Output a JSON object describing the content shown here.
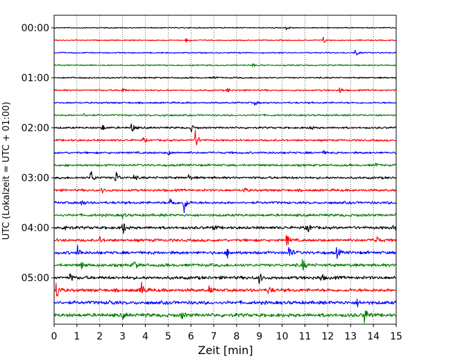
{
  "chart_data": {
    "type": "line",
    "title": "",
    "xlabel": "Zeit  [min]",
    "ylabel": "UTC (Lokalzeit = UTC + 01:00)",
    "xlim": [
      0,
      15
    ],
    "xticks": [
      0,
      1,
      2,
      3,
      4,
      5,
      6,
      7,
      8,
      9,
      10,
      11,
      12,
      13,
      14,
      15
    ],
    "xtick_labels": [
      "0",
      "1",
      "2",
      "3",
      "4",
      "5",
      "6",
      "7",
      "8",
      "9",
      "10",
      "11",
      "12",
      "13",
      "14",
      "15"
    ],
    "ytick_labels": [
      "00:00",
      "01:00",
      "02:00",
      "03:00",
      "04:00",
      "05:00"
    ],
    "minutes_per_trace": 15,
    "vertical_grid": true,
    "grid_style": "dotted",
    "trace_colors": [
      "#000000",
      "#ff0000",
      "#0000ff",
      "#008000"
    ],
    "traces": [
      {
        "start": "00:00",
        "color": "#000000",
        "events": [
          [
            10.2,
            0.25
          ]
        ]
      },
      {
        "start": "00:15",
        "color": "#ff0000",
        "events": [
          [
            5.8,
            0.3
          ],
          [
            11.8,
            0.3
          ]
        ]
      },
      {
        "start": "00:30",
        "color": "#0000ff",
        "events": [
          [
            13.2,
            0.35
          ]
        ]
      },
      {
        "start": "00:45",
        "color": "#008000",
        "events": [
          [
            8.7,
            0.15
          ]
        ]
      },
      {
        "start": "01:00",
        "color": "#000000",
        "events": [
          [
            7.0,
            0.12
          ]
        ]
      },
      {
        "start": "01:15",
        "color": "#ff0000",
        "events": [
          [
            3.0,
            0.2
          ],
          [
            7.6,
            0.25
          ],
          [
            12.5,
            0.35
          ]
        ]
      },
      {
        "start": "01:30",
        "color": "#0000ff",
        "events": [
          [
            8.8,
            0.2
          ]
        ]
      },
      {
        "start": "01:45",
        "color": "#008000",
        "events": [
          [
            1.3,
            0.15
          ],
          [
            4.8,
            0.15
          ]
        ]
      },
      {
        "start": "02:00",
        "color": "#000000",
        "events": [
          [
            2.1,
            0.3
          ],
          [
            3.4,
            0.5
          ],
          [
            6.0,
            0.35
          ],
          [
            11.2,
            0.3
          ]
        ]
      },
      {
        "start": "02:15",
        "color": "#ff0000",
        "events": [
          [
            3.9,
            0.2
          ],
          [
            6.2,
            0.9
          ]
        ]
      },
      {
        "start": "02:30",
        "color": "#0000ff",
        "events": [
          [
            5.0,
            0.2
          ],
          [
            11.8,
            0.15
          ]
        ]
      },
      {
        "start": "02:45",
        "color": "#008000",
        "events": [
          [
            14.1,
            0.15
          ]
        ]
      },
      {
        "start": "03:00",
        "color": "#000000",
        "events": [
          [
            1.6,
            0.75
          ],
          [
            2.7,
            0.65
          ],
          [
            3.5,
            0.25
          ],
          [
            5.9,
            0.25
          ]
        ]
      },
      {
        "start": "03:15",
        "color": "#ff0000",
        "events": [
          [
            2.1,
            0.25
          ],
          [
            8.3,
            0.3
          ]
        ]
      },
      {
        "start": "03:30",
        "color": "#0000ff",
        "events": [
          [
            1.2,
            0.25
          ],
          [
            5.1,
            0.55
          ],
          [
            5.7,
            0.9
          ]
        ]
      },
      {
        "start": "03:45",
        "color": "#008000",
        "events": [
          [
            3.0,
            0.2
          ]
        ]
      },
      {
        "start": "04:00",
        "color": "#000000",
        "events": [
          [
            0.5,
            0.35
          ],
          [
            3.0,
            0.7
          ],
          [
            7.0,
            0.25
          ],
          [
            11.1,
            0.55
          ],
          [
            14.9,
            0.3
          ]
        ]
      },
      {
        "start": "04:15",
        "color": "#ff0000",
        "events": [
          [
            2.0,
            0.25
          ],
          [
            10.2,
            0.55
          ],
          [
            14.1,
            0.55
          ]
        ]
      },
      {
        "start": "04:30",
        "color": "#0000ff",
        "events": [
          [
            1.0,
            0.75
          ],
          [
            7.6,
            0.4
          ],
          [
            10.3,
            0.7
          ],
          [
            12.4,
            0.5
          ]
        ]
      },
      {
        "start": "04:45",
        "color": "#008000",
        "events": [
          [
            1.2,
            0.25
          ],
          [
            3.5,
            0.45
          ],
          [
            10.9,
            0.55
          ]
        ]
      },
      {
        "start": "05:00",
        "color": "#000000",
        "events": [
          [
            0.7,
            0.35
          ],
          [
            9.0,
            0.55
          ],
          [
            11.7,
            0.35
          ]
        ]
      },
      {
        "start": "05:15",
        "color": "#ff0000",
        "events": [
          [
            0.1,
            0.95
          ],
          [
            3.8,
            1.0
          ],
          [
            6.8,
            0.3
          ],
          [
            9.4,
            0.4
          ]
        ]
      },
      {
        "start": "05:30",
        "color": "#0000ff",
        "events": [
          [
            2.4,
            0.25
          ],
          [
            13.3,
            0.3
          ]
        ]
      },
      {
        "start": "05:45",
        "color": "#008000",
        "events": [
          [
            3.0,
            0.3
          ],
          [
            5.6,
            0.35
          ],
          [
            13.6,
            0.9
          ]
        ]
      }
    ]
  }
}
